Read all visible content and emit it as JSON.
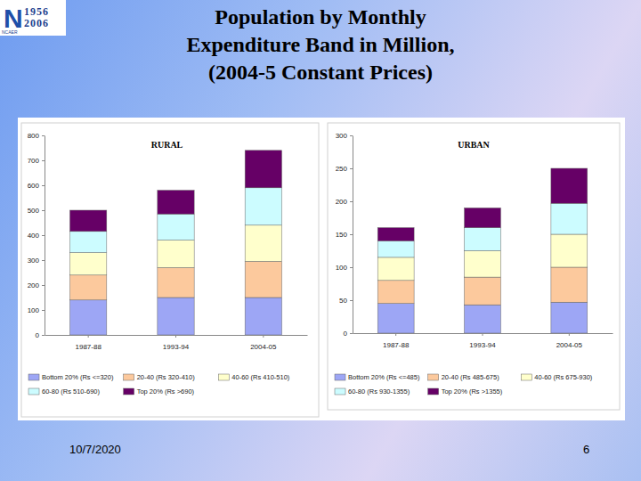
{
  "slide": {
    "title_lines": [
      "Population by Monthly",
      "Expenditure Band in Million,",
      "(2004-5 Constant Prices)"
    ],
    "date": "10/7/2020",
    "page": 6,
    "logo": {
      "mark": "N",
      "years": [
        "1956",
        "2006"
      ],
      "name": "NCAER"
    }
  },
  "chart_data": [
    {
      "type": "bar",
      "stacked": true,
      "title": "RURAL",
      "categories": [
        "1987-88",
        "1993-94",
        "2004-05"
      ],
      "series": [
        {
          "name": "Bottom 20% (Rs <=320)",
          "color": "#9da6f5",
          "values": [
            140,
            150,
            150
          ]
        },
        {
          "name": "20-40 (Rs 320-410)",
          "color": "#fcc99d",
          "values": [
            100,
            120,
            145
          ]
        },
        {
          "name": "40-60 (Rs 410-510)",
          "color": "#ffffcc",
          "values": [
            90,
            110,
            145
          ]
        },
        {
          "name": "60-80 (Rs 510-690)",
          "color": "#ccfcff",
          "values": [
            85,
            105,
            150
          ]
        },
        {
          "name": "Top 20% (Rs >690)",
          "color": "#660066",
          "values": [
            85,
            95,
            150
          ]
        }
      ],
      "ylim": [
        0,
        800
      ],
      "yticks": [
        0,
        100,
        200,
        300,
        400,
        500,
        600,
        700,
        800
      ],
      "grid": false,
      "legend": "bottom"
    },
    {
      "type": "bar",
      "stacked": true,
      "title": "URBAN",
      "categories": [
        "1987-88",
        "1993-94",
        "2004-05"
      ],
      "series": [
        {
          "name": "Bottom 20% (Rs <=485)",
          "color": "#9da6f5",
          "values": [
            45,
            43,
            47
          ]
        },
        {
          "name": "20-40 (Rs 485-675)",
          "color": "#fcc99d",
          "values": [
            35,
            42,
            53
          ]
        },
        {
          "name": "40-60 (Rs 675-930)",
          "color": "#ffffcc",
          "values": [
            35,
            40,
            50
          ]
        },
        {
          "name": "60-80 (Rs 930-1355)",
          "color": "#ccfcff",
          "values": [
            25,
            35,
            47
          ]
        },
        {
          "name": "Top 20% (Rs >1355)",
          "color": "#660066",
          "values": [
            20,
            30,
            53
          ]
        }
      ],
      "ylim": [
        0,
        300
      ],
      "yticks": [
        0,
        50,
        100,
        150,
        200,
        250,
        300
      ],
      "grid": false,
      "legend": "bottom"
    }
  ]
}
